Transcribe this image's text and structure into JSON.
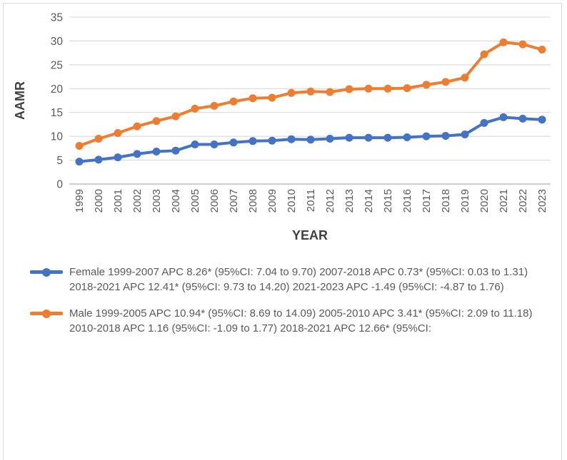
{
  "chart_data": {
    "type": "line",
    "title": "",
    "xlabel": "YEAR",
    "ylabel": "AAMR",
    "ylim": [
      0,
      35
    ],
    "yticks": [
      0,
      5,
      10,
      15,
      20,
      25,
      30,
      35
    ],
    "grid": true,
    "legend_position": "bottom",
    "categories": [
      "1999",
      "2000",
      "2001",
      "2002",
      "2003",
      "2004",
      "2005",
      "2006",
      "2007",
      "2008",
      "2009",
      "2010",
      "2011",
      "2012",
      "2013",
      "2014",
      "2015",
      "2016",
      "2017",
      "2018",
      "2019",
      "2020",
      "2021",
      "2022",
      "2023"
    ],
    "series": [
      {
        "name": "Female",
        "color": "#4472C4",
        "values": [
          4.7,
          5.1,
          5.6,
          6.3,
          6.8,
          7.0,
          8.3,
          8.3,
          8.7,
          9.0,
          9.1,
          9.4,
          9.3,
          9.5,
          9.7,
          9.7,
          9.7,
          9.8,
          10.0,
          10.1,
          10.4,
          12.8,
          14.0,
          13.7,
          13.5
        ],
        "legend_label": "Female 1999-2007 APC 8.26* (95%CI: 7.04 to 9.70) 2007-2018 APC 0.73* (95%CI: 0.03 to 1.31) 2018-2021 APC 12.41* (95%CI: 9.73 to 14.20) 2021-2023 APC -1.49 (95%CI: -4.87 to 1.76)"
      },
      {
        "name": "Male",
        "color": "#ED7D31",
        "values": [
          8.0,
          9.5,
          10.7,
          12.1,
          13.2,
          14.2,
          15.8,
          16.4,
          17.3,
          18.0,
          18.1,
          19.1,
          19.4,
          19.3,
          19.9,
          20.0,
          20.0,
          20.1,
          20.8,
          21.4,
          22.3,
          27.2,
          29.7,
          29.3,
          28.2
        ],
        "legend_label": "Male 1999-2005 APC 10.94* (95%CI: 8.69 to 14.09) 2005-2010 APC 3.41* (95%CI: 2.09 to 11.18) 2010-2018 APC 1.16 (95%CI: -1.09 to 1.77) 2018-2021 APC 12.66* (95%CI:"
      }
    ]
  },
  "colors": {
    "gridline": "#D9D9D9",
    "axis_line": "#BFBFBF",
    "tick_label": "#595959",
    "axis_title": "#404040",
    "legend_text": "#595959",
    "frame_border": "#D9D9D9"
  }
}
